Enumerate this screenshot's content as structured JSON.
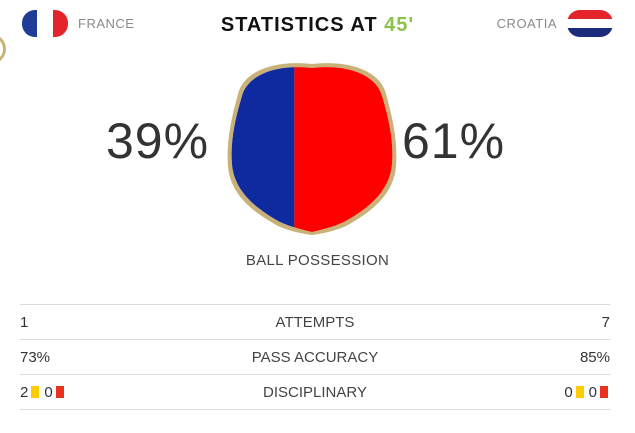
{
  "header": {
    "home_team": "FRANCE",
    "away_team": "CROATIA",
    "title_prefix": "STATISTICS AT",
    "minute": "45'"
  },
  "possession": {
    "home_pct": "39%",
    "away_pct": "61%",
    "home_fraction": 0.39,
    "label": "BALL POSSESSION",
    "home_color": "#0f2a9e",
    "away_color": "#ff0000",
    "border_color": "#c9b27a"
  },
  "stats": {
    "attempts": {
      "label": "ATTEMPTS",
      "home": "1",
      "away": "7"
    },
    "pass_accuracy": {
      "label": "PASS ACCURACY",
      "home": "73%",
      "away": "85%"
    },
    "disciplinary": {
      "label": "DISCIPLINARY",
      "home_yellow": "2",
      "home_red": "0",
      "away_yellow": "0",
      "away_red": "0"
    }
  },
  "colors": {
    "minute_accent": "#8bc34a",
    "yellow_card": "#ffcc00",
    "red_card": "#e8341c"
  }
}
